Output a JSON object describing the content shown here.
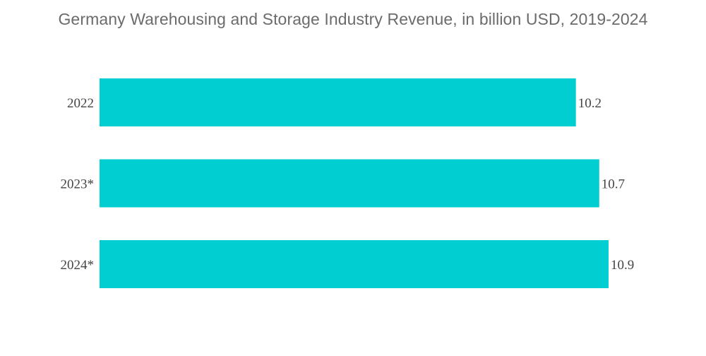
{
  "chart_data": {
    "type": "bar",
    "orientation": "horizontal",
    "title": "Germany Warehousing and Storage Industry Revenue, in billion USD, 2019-2024",
    "categories": [
      "2022",
      "2023*",
      "2024*"
    ],
    "values": [
      10.2,
      10.7,
      10.9
    ],
    "value_labels": [
      "10.2",
      "10.7",
      "10.9"
    ],
    "xlabel": "",
    "ylabel": "",
    "xlim": [
      0,
      10.9
    ],
    "grid": false,
    "legend": "none",
    "bar_color": "#00CED1"
  }
}
